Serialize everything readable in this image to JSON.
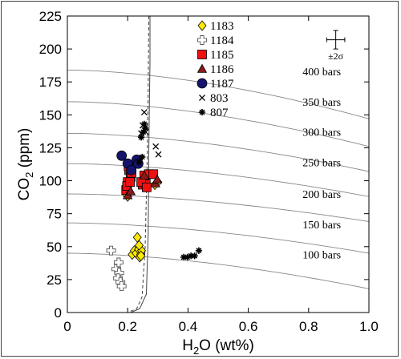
{
  "chart_data": {
    "type": "scatter",
    "xlabel": "H2O (wt%)",
    "xlabel_main": "H",
    "xlabel_sub": "2",
    "xlabel_rest": "O (wt%)",
    "ylabel_main": "CO",
    "ylabel_sub": "2",
    "ylabel_rest": " (ppm)",
    "xlim": [
      0,
      1.0
    ],
    "ylim": [
      0,
      225
    ],
    "x_ticks": [
      {
        "v": 0,
        "label": "0"
      },
      {
        "v": 0.2,
        "label": "0.2"
      },
      {
        "v": 0.4,
        "label": "0.4"
      },
      {
        "v": 0.6,
        "label": "0.6"
      },
      {
        "v": 0.8,
        "label": "0.8"
      },
      {
        "v": 1.0,
        "label": "1.0"
      }
    ],
    "y_ticks": [
      {
        "v": 0,
        "label": "0"
      },
      {
        "v": 25,
        "label": "25"
      },
      {
        "v": 50,
        "label": "50"
      },
      {
        "v": 75,
        "label": "75"
      },
      {
        "v": 100,
        "label": "100"
      },
      {
        "v": 125,
        "label": "125"
      },
      {
        "v": 150,
        "label": "150"
      },
      {
        "v": 175,
        "label": "175"
      },
      {
        "v": 200,
        "label": "200"
      },
      {
        "v": 225,
        "label": "225"
      }
    ],
    "error_bar": {
      "label": "±2σ",
      "x": 0.89,
      "y": 207,
      "dx": 0.03,
      "dy": 7
    },
    "isobars": [
      {
        "label": "400 bars",
        "y0": 184,
        "y1": 147,
        "label_x": 0.78,
        "label_y": 180
      },
      {
        "label": "350 bars",
        "y0": 160,
        "y1": 126,
        "label_x": 0.78,
        "label_y": 157
      },
      {
        "label": "300 bars",
        "y0": 136,
        "y1": 107,
        "label_x": 0.78,
        "label_y": 134
      },
      {
        "label": "250 bars",
        "y0": 113,
        "y1": 88,
        "label_x": 0.78,
        "label_y": 111
      },
      {
        "label": "200 bars",
        "y0": 90,
        "y1": 69,
        "label_x": 0.78,
        "label_y": 87
      },
      {
        "label": "150 bars",
        "y0": 68,
        "y1": 45,
        "label_x": 0.78,
        "label_y": 64
      },
      {
        "label": "100 bars",
        "y0": 45,
        "y1": 18,
        "label_x": 0.78,
        "label_y": 41
      }
    ],
    "degassing_paths": [
      {
        "name": "path-solid",
        "dash": "",
        "points": [
          [
            0.274,
            225
          ],
          [
            0.274,
            190
          ],
          [
            0.272,
            160
          ],
          [
            0.27,
            120
          ],
          [
            0.268,
            60
          ],
          [
            0.262,
            14
          ],
          [
            0.24,
            3
          ],
          [
            0.21,
            0
          ]
        ]
      },
      {
        "name": "path-dashed",
        "dash": "4 3",
        "points": [
          [
            0.27,
            225
          ],
          [
            0.268,
            170
          ],
          [
            0.264,
            110
          ],
          [
            0.258,
            50
          ],
          [
            0.248,
            12
          ],
          [
            0.23,
            3
          ],
          [
            0.2,
            0
          ]
        ]
      }
    ],
    "series": [
      {
        "name": "1183",
        "marker": "diamond",
        "fill": "#ffea00",
        "stroke": "#000000",
        "x": [
          0.215,
          0.222,
          0.228,
          0.232,
          0.236,
          0.24,
          0.243,
          0.246,
          0.238,
          0.244,
          0.2,
          0.195,
          0.29,
          0.3,
          0.205
        ],
        "y": [
          44,
          47,
          45,
          57,
          48,
          42,
          44,
          47,
          51,
          43,
          88,
          90,
          97,
          99,
          92
        ]
      },
      {
        "name": "1184",
        "marker": "plus",
        "fill": "#ffffff",
        "stroke": "#555555",
        "x": [
          0.145,
          0.162,
          0.172,
          0.168,
          0.176,
          0.18,
          0.17
        ],
        "y": [
          47,
          33,
          30,
          26,
          23,
          20,
          38
        ]
      },
      {
        "name": "1185",
        "marker": "square",
        "fill": "#ee1111",
        "stroke": "#000000",
        "x": [
          0.195,
          0.2,
          0.205,
          0.21,
          0.198,
          0.203,
          0.208,
          0.213,
          0.25,
          0.26,
          0.255,
          0.27,
          0.285,
          0.245,
          0.263
        ],
        "y": [
          93,
          99,
          108,
          103,
          96,
          111,
          99,
          106,
          97,
          98,
          104,
          105,
          105,
          99,
          95
        ]
      },
      {
        "name": "1186",
        "marker": "triangle",
        "fill": "#8b1a1a",
        "stroke": "#000000",
        "x": [
          0.2,
          0.21,
          0.292,
          0.298,
          0.255
        ],
        "y": [
          89,
          92,
          98,
          101,
          104
        ]
      },
      {
        "name": "1187",
        "marker": "circle",
        "fill": "#14146e",
        "stroke": "#000000",
        "x": [
          0.18,
          0.2,
          0.23,
          0.235,
          0.212
        ],
        "y": [
          119,
          113,
          116,
          113,
          108
        ]
      },
      {
        "name": "803",
        "marker": "x",
        "fill": "none",
        "stroke": "#000000",
        "x": [
          0.255,
          0.25,
          0.26,
          0.293,
          0.302,
          0.245
        ],
        "y": [
          152,
          142,
          137,
          126,
          120,
          136
        ]
      },
      {
        "name": "807",
        "marker": "star",
        "fill": "none",
        "stroke": "#000000",
        "x": [
          0.245,
          0.252,
          0.255,
          0.258,
          0.238,
          0.248,
          0.386,
          0.398,
          0.41,
          0.422,
          0.436
        ],
        "y": [
          133,
          137,
          143,
          140,
          114,
          118,
          42,
          42,
          43,
          43,
          47
        ]
      }
    ]
  }
}
